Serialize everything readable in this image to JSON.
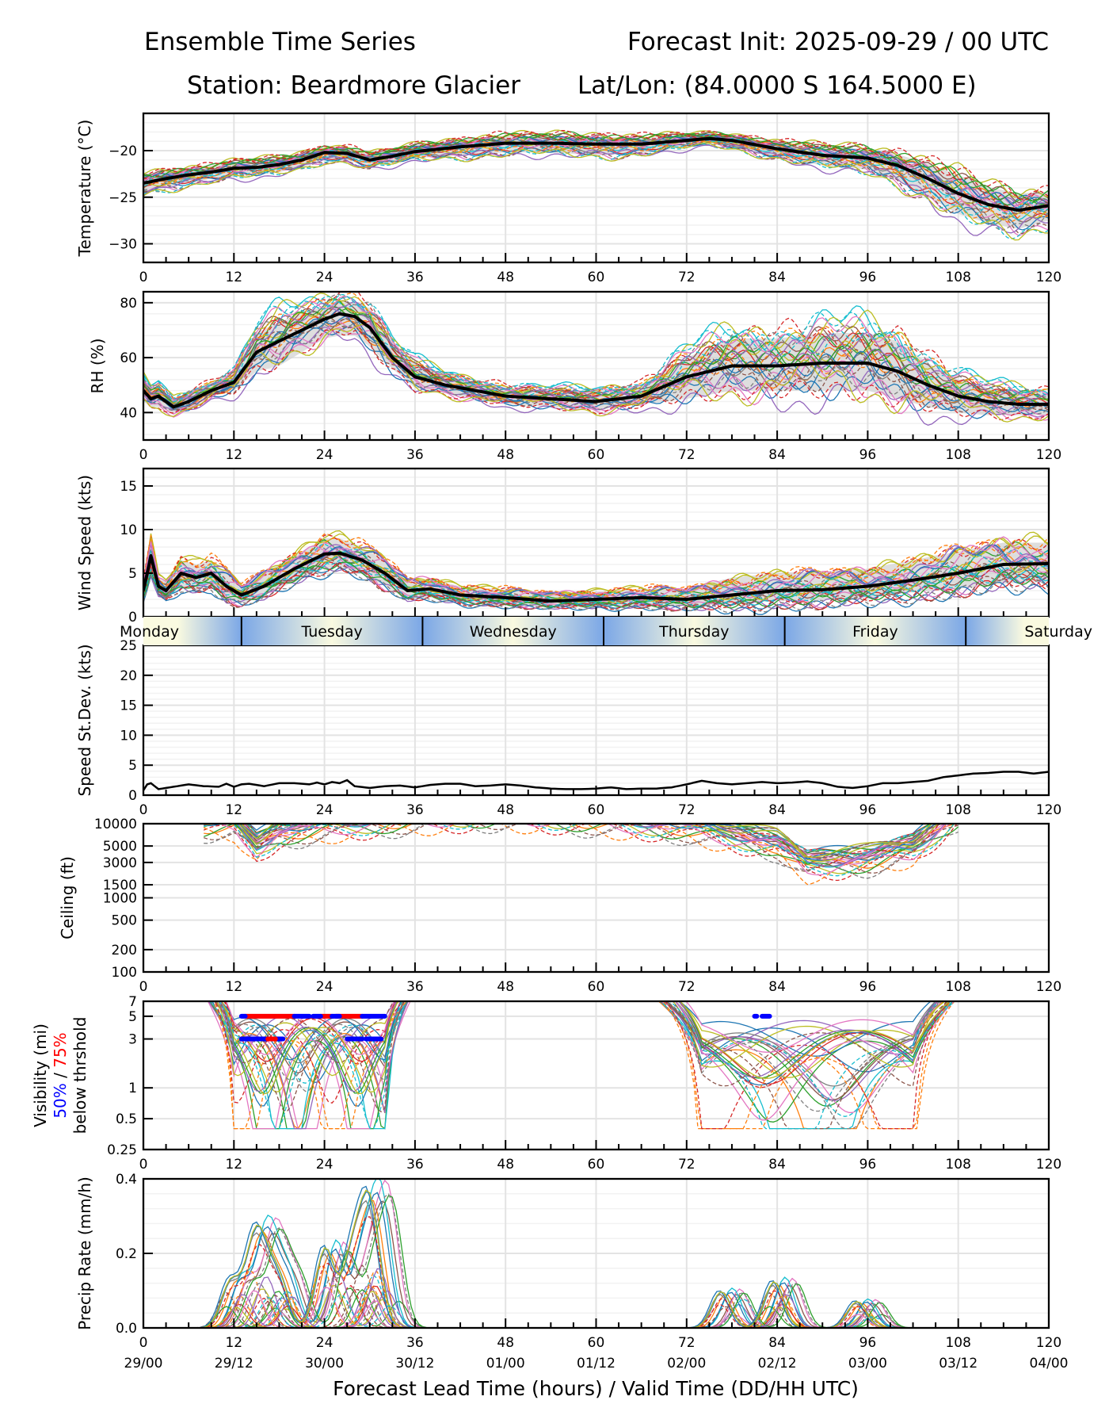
{
  "header": {
    "title_left": "Ensemble Time Series",
    "title_right": "Forecast Init: 2025-09-29 / 00 UTC",
    "station": "Station: Beardmore Glacier",
    "latlon": "Lat/Lon: (84.0000 S 164.5000 E)"
  },
  "chart_data": [
    {
      "type": "line",
      "id": "temperature",
      "ylabel": "Temperature (°C)",
      "ylim": [
        -32,
        -16
      ],
      "yticks": [
        -30,
        -25,
        -20
      ],
      "ytick_labels": [
        "−30",
        "−25",
        "−20"
      ],
      "x": [
        0,
        3,
        6,
        9,
        12,
        15,
        18,
        21,
        24,
        27,
        30,
        33,
        36,
        42,
        48,
        54,
        60,
        66,
        72,
        75,
        78,
        84,
        90,
        96,
        100,
        104,
        108,
        112,
        116,
        120
      ],
      "mean": [
        -23.5,
        -23,
        -22.6,
        -22.3,
        -21.9,
        -21.8,
        -21.5,
        -21,
        -20.2,
        -20.3,
        -21,
        -20.6,
        -20.1,
        -19.6,
        -19.2,
        -19.2,
        -19.3,
        -19.3,
        -18.9,
        -18.7,
        -18.9,
        -19.8,
        -20.5,
        -20.8,
        -21.6,
        -23,
        -24.6,
        -25.8,
        -26.4,
        -25.9
      ],
      "spread_lo": [
        -24.5,
        -24,
        -23.5,
        -23,
        -22.8,
        -22.6,
        -22.3,
        -21.8,
        -21,
        -21,
        -21.7,
        -21.3,
        -20.8,
        -20.5,
        -20.2,
        -20.2,
        -20.5,
        -20.3,
        -19.6,
        -19.3,
        -19.6,
        -20.7,
        -21.6,
        -22,
        -23.2,
        -25,
        -26.8,
        -27.8,
        -28.4,
        -27.5
      ],
      "spread_hi": [
        -22.5,
        -22.2,
        -21.8,
        -21.6,
        -21.2,
        -21,
        -20.8,
        -20.3,
        -19.6,
        -19.6,
        -20.3,
        -19.9,
        -19.4,
        -18.8,
        -18.4,
        -18.4,
        -18.5,
        -18.6,
        -18.3,
        -18.2,
        -18.3,
        -19.1,
        -19.6,
        -19.8,
        -20.4,
        -21.4,
        -22.6,
        -23.9,
        -24.6,
        -24.4
      ],
      "members": 30,
      "xlabel_ticks": [
        "0",
        "12",
        "24",
        "36",
        "48",
        "60",
        "72",
        "84",
        "96",
        "108",
        "120"
      ]
    },
    {
      "type": "line",
      "id": "rh",
      "ylabel": "RH (%)",
      "ylim": [
        30,
        84
      ],
      "yticks": [
        40,
        60,
        80
      ],
      "ytick_labels": [
        "40",
        "60",
        "80"
      ],
      "x": [
        0,
        1,
        2,
        4,
        6,
        9,
        12,
        15,
        18,
        21,
        24,
        26,
        28,
        30,
        33,
        36,
        40,
        44,
        48,
        54,
        60,
        66,
        72,
        78,
        84,
        90,
        96,
        100,
        104,
        108,
        112,
        116,
        120
      ],
      "mean": [
        48,
        45,
        46,
        42,
        44,
        48,
        51,
        62,
        66,
        70,
        74,
        76,
        75,
        71,
        60,
        53,
        50,
        48,
        46,
        45,
        44,
        46,
        53,
        57,
        57,
        58,
        58,
        55,
        50,
        46,
        44,
        43,
        43
      ],
      "spread_lo": [
        44,
        42,
        42,
        40,
        41,
        46,
        48,
        55,
        57,
        62,
        67,
        68,
        68,
        64,
        56,
        49,
        47,
        45,
        43,
        42,
        41,
        43,
        45,
        48,
        48,
        48,
        48,
        45,
        42,
        40,
        39,
        39,
        39
      ],
      "spread_hi": [
        52,
        49,
        49,
        45,
        47,
        51,
        55,
        69,
        73,
        76,
        79,
        80,
        80,
        78,
        66,
        58,
        54,
        51,
        49,
        48,
        48,
        50,
        60,
        67,
        67,
        69,
        69,
        66,
        58,
        52,
        49,
        48,
        47
      ],
      "members": 30,
      "xlabel_ticks": [
        "0",
        "12",
        "24",
        "36",
        "48",
        "60",
        "72",
        "84",
        "96",
        "108",
        "120"
      ]
    },
    {
      "type": "line",
      "id": "wind_speed",
      "ylabel": "Wind Speed (kts)",
      "ylim": [
        0,
        17
      ],
      "yticks": [
        0,
        5,
        10,
        15
      ],
      "ytick_labels": [
        "0",
        "5",
        "10",
        "15"
      ],
      "x": [
        0,
        1,
        2,
        3,
        5,
        7,
        9,
        11,
        13,
        16,
        20,
        24,
        26,
        29,
        32,
        35,
        38,
        42,
        48,
        54,
        60,
        66,
        72,
        78,
        84,
        90,
        96,
        102,
        108,
        114,
        120
      ],
      "mean": [
        3,
        7,
        3.5,
        3,
        5,
        4.5,
        5,
        3.5,
        2.5,
        3.5,
        5.5,
        7.2,
        7.3,
        6.5,
        5,
        3,
        3.2,
        2.5,
        2.2,
        1.8,
        2,
        2.2,
        2,
        2.5,
        3,
        3.1,
        3.5,
        4.2,
        5,
        6,
        6.1
      ],
      "spread_lo": [
        2,
        5,
        2.5,
        2,
        3.5,
        3,
        3.5,
        2,
        1.5,
        2.5,
        4,
        5.5,
        5.8,
        5,
        3.5,
        2,
        2.2,
        1.7,
        1.4,
        1.1,
        1.2,
        1.3,
        1.2,
        1.5,
        1.8,
        1.9,
        2.2,
        2.8,
        3.2,
        3.8,
        4
      ],
      "spread_hi": [
        4,
        9,
        4.5,
        4,
        6.5,
        6,
        6.5,
        5,
        3.5,
        5,
        7,
        9,
        9,
        8,
        6.5,
        4,
        4.3,
        3.5,
        3.1,
        2.6,
        2.9,
        3.2,
        3.2,
        4.5,
        5,
        5.2,
        5.5,
        6.5,
        7.5,
        8.5,
        8.5
      ],
      "members": 30,
      "xlabel_ticks": []
    },
    {
      "type": "line",
      "id": "speed_stdev",
      "ylabel": "Speed St.Dev. (kts)",
      "ylim": [
        0,
        25
      ],
      "yticks": [
        0,
        5,
        10,
        15,
        20,
        25
      ],
      "ytick_labels": [
        "0",
        "5",
        "10",
        "15",
        "20",
        "25"
      ],
      "x": [
        0,
        0.5,
        1,
        2,
        4,
        6,
        8,
        10,
        11,
        12,
        13,
        14,
        16,
        18,
        20,
        22,
        23,
        24,
        25,
        26,
        27,
        28,
        30,
        32,
        34,
        36,
        38,
        40,
        42,
        44,
        46,
        48,
        50,
        52,
        54,
        56,
        58,
        60,
        62,
        64,
        66,
        68,
        70,
        72,
        74,
        76,
        78,
        80,
        82,
        84,
        86,
        88,
        90,
        92,
        94,
        96,
        98,
        100,
        102,
        104,
        106,
        108,
        110,
        112,
        114,
        116,
        118,
        120
      ],
      "values": [
        0.8,
        1.8,
        2.0,
        1.0,
        1.4,
        1.8,
        1.5,
        1.4,
        1.9,
        1.4,
        1.8,
        1.9,
        1.5,
        2.0,
        2.0,
        1.8,
        2.1,
        1.8,
        2.2,
        2.0,
        2.5,
        1.5,
        1.2,
        1.5,
        1.6,
        1.3,
        1.7,
        1.9,
        1.9,
        1.5,
        1.6,
        1.8,
        1.6,
        1.3,
        1.1,
        1.0,
        1.0,
        1.1,
        1.3,
        1.0,
        1.1,
        1.1,
        1.3,
        1.8,
        2.4,
        2.0,
        1.8,
        2.0,
        2.2,
        2.0,
        2.1,
        2.3,
        2.0,
        1.4,
        1.2,
        1.5,
        2.0,
        2.0,
        2.2,
        2.4,
        3.0,
        3.3,
        3.6,
        3.7,
        3.9,
        3.9,
        3.6,
        3.9
      ],
      "xlabel_ticks": [
        "0",
        "12",
        "24",
        "36",
        "48",
        "60",
        "72",
        "84",
        "96",
        "108",
        "120"
      ]
    },
    {
      "type": "line",
      "id": "ceiling",
      "ylabel": "Ceiling (ft)",
      "yscale": "log",
      "ylim": [
        100,
        10000
      ],
      "yticks": [
        100,
        200,
        500,
        1000,
        1500,
        3000,
        5000,
        10000
      ],
      "ytick_labels": [
        "100",
        "200",
        "500",
        "1000",
        "1500",
        "3000",
        "5000",
        "10000"
      ],
      "members": 30,
      "member_min_approx": [
        [
          12,
          6500
        ],
        [
          15,
          3200
        ],
        [
          18,
          5000
        ],
        [
          24,
          6200
        ],
        [
          36,
          8000
        ],
        [
          48,
          9000
        ],
        [
          60,
          7500
        ],
        [
          72,
          6000
        ],
        [
          84,
          3500
        ],
        [
          88,
          1800
        ],
        [
          96,
          2200
        ],
        [
          102,
          3000
        ],
        [
          108,
          9000
        ]
      ],
      "xlabel_ticks": [
        "0",
        "12",
        "24",
        "36",
        "48",
        "60",
        "72",
        "84",
        "96",
        "108",
        "120"
      ]
    },
    {
      "type": "line",
      "id": "visibility",
      "ylabel": "Visibility (mi)",
      "ylabel_line2_blue": "50%",
      "ylabel_line2_sep": " / ",
      "ylabel_line2_red": "75%",
      "ylabel_line3": "below thrshold",
      "yscale": "log",
      "ylim": [
        0.25,
        7
      ],
      "yticks": [
        0.25,
        0.5,
        1,
        3,
        5,
        7
      ],
      "ytick_labels": [
        "0.25",
        "0.5",
        "1",
        "3",
        "5",
        "7"
      ],
      "members": 30,
      "threshold_bars": [
        {
          "threshold": 5,
          "color": "#ff0000",
          "segments": [
            [
              13.5,
              20
            ],
            [
              23.5,
              25
            ],
            [
              25.5,
              29
            ]
          ]
        },
        {
          "threshold": 5,
          "color": "#0000ff",
          "segments": [
            [
              13,
              13.5
            ],
            [
              20,
              22
            ],
            [
              22.5,
              23.5
            ],
            [
              25,
              26
            ],
            [
              29,
              32
            ]
          ]
        },
        {
          "threshold": 3,
          "color": "#0000ff",
          "segments": [
            [
              13,
              16.5
            ],
            [
              17.5,
              18.5
            ],
            [
              27,
              29
            ],
            [
              29.5,
              31.5
            ]
          ]
        },
        {
          "threshold": 3,
          "color": "#ff0000",
          "segments": [
            [
              16.5,
              17.5
            ]
          ]
        },
        {
          "threshold": 5,
          "color": "#0000ff",
          "segments": [
            [
              81,
              81.3
            ],
            [
              82,
              83
            ]
          ]
        }
      ],
      "xlabel_ticks": [
        "0",
        "12",
        "24",
        "36",
        "48",
        "60",
        "72",
        "84",
        "96",
        "108",
        "120"
      ]
    },
    {
      "type": "line",
      "id": "precip_rate",
      "ylabel": "Precip Rate (mm/h)",
      "ylim": [
        0,
        0.4
      ],
      "yticks": [
        0.0,
        0.2,
        0.4
      ],
      "ytick_labels": [
        "0.0",
        "0.2",
        "0.4"
      ],
      "members": 30,
      "peaks": [
        [
          13,
          0.14
        ],
        [
          16,
          0.22
        ],
        [
          17.5,
          0.14
        ],
        [
          19.5,
          0.13
        ],
        [
          25.5,
          0.24
        ],
        [
          29,
          0.2
        ],
        [
          31,
          0.25
        ],
        [
          32,
          0.16
        ],
        [
          78,
          0.11
        ],
        [
          85,
          0.14
        ],
        [
          96,
          0.08
        ]
      ],
      "xlabel_ticks": [
        "0",
        "12",
        "24",
        "36",
        "48",
        "60",
        "72",
        "84",
        "96",
        "108",
        "120"
      ],
      "xlabel_ticks_valid": [
        "29/00",
        "29/12",
        "30/00",
        "30/12",
        "01/00",
        "01/12",
        "02/00",
        "02/12",
        "03/00",
        "03/12",
        "04/00"
      ]
    }
  ],
  "day_band": {
    "days": [
      {
        "label": "Monday",
        "start": -3,
        "end": 13
      },
      {
        "label": "Tuesday",
        "start": 13,
        "end": 37
      },
      {
        "label": "Wednesday",
        "start": 37,
        "end": 61
      },
      {
        "label": "Thursday",
        "start": 61,
        "end": 85
      },
      {
        "label": "Friday",
        "start": 85,
        "end": 109
      },
      {
        "label": "Saturday",
        "start": 109,
        "end": 123
      }
    ],
    "color_light": "#fafae0",
    "color_dark": "#7ba7e6"
  },
  "xlim": [
    0,
    120
  ],
  "xlabel": "Forecast Lead Time (hours) / Valid Time (DD/HH UTC)",
  "member_colors": [
    "#1f77b4",
    "#ff7f0e",
    "#2ca02c",
    "#d62728",
    "#9467bd",
    "#8c564b",
    "#e377c2",
    "#7f7f7f",
    "#bcbd22",
    "#17becf"
  ],
  "mean_color": "#000000",
  "spread_color": "#d3d3d3"
}
